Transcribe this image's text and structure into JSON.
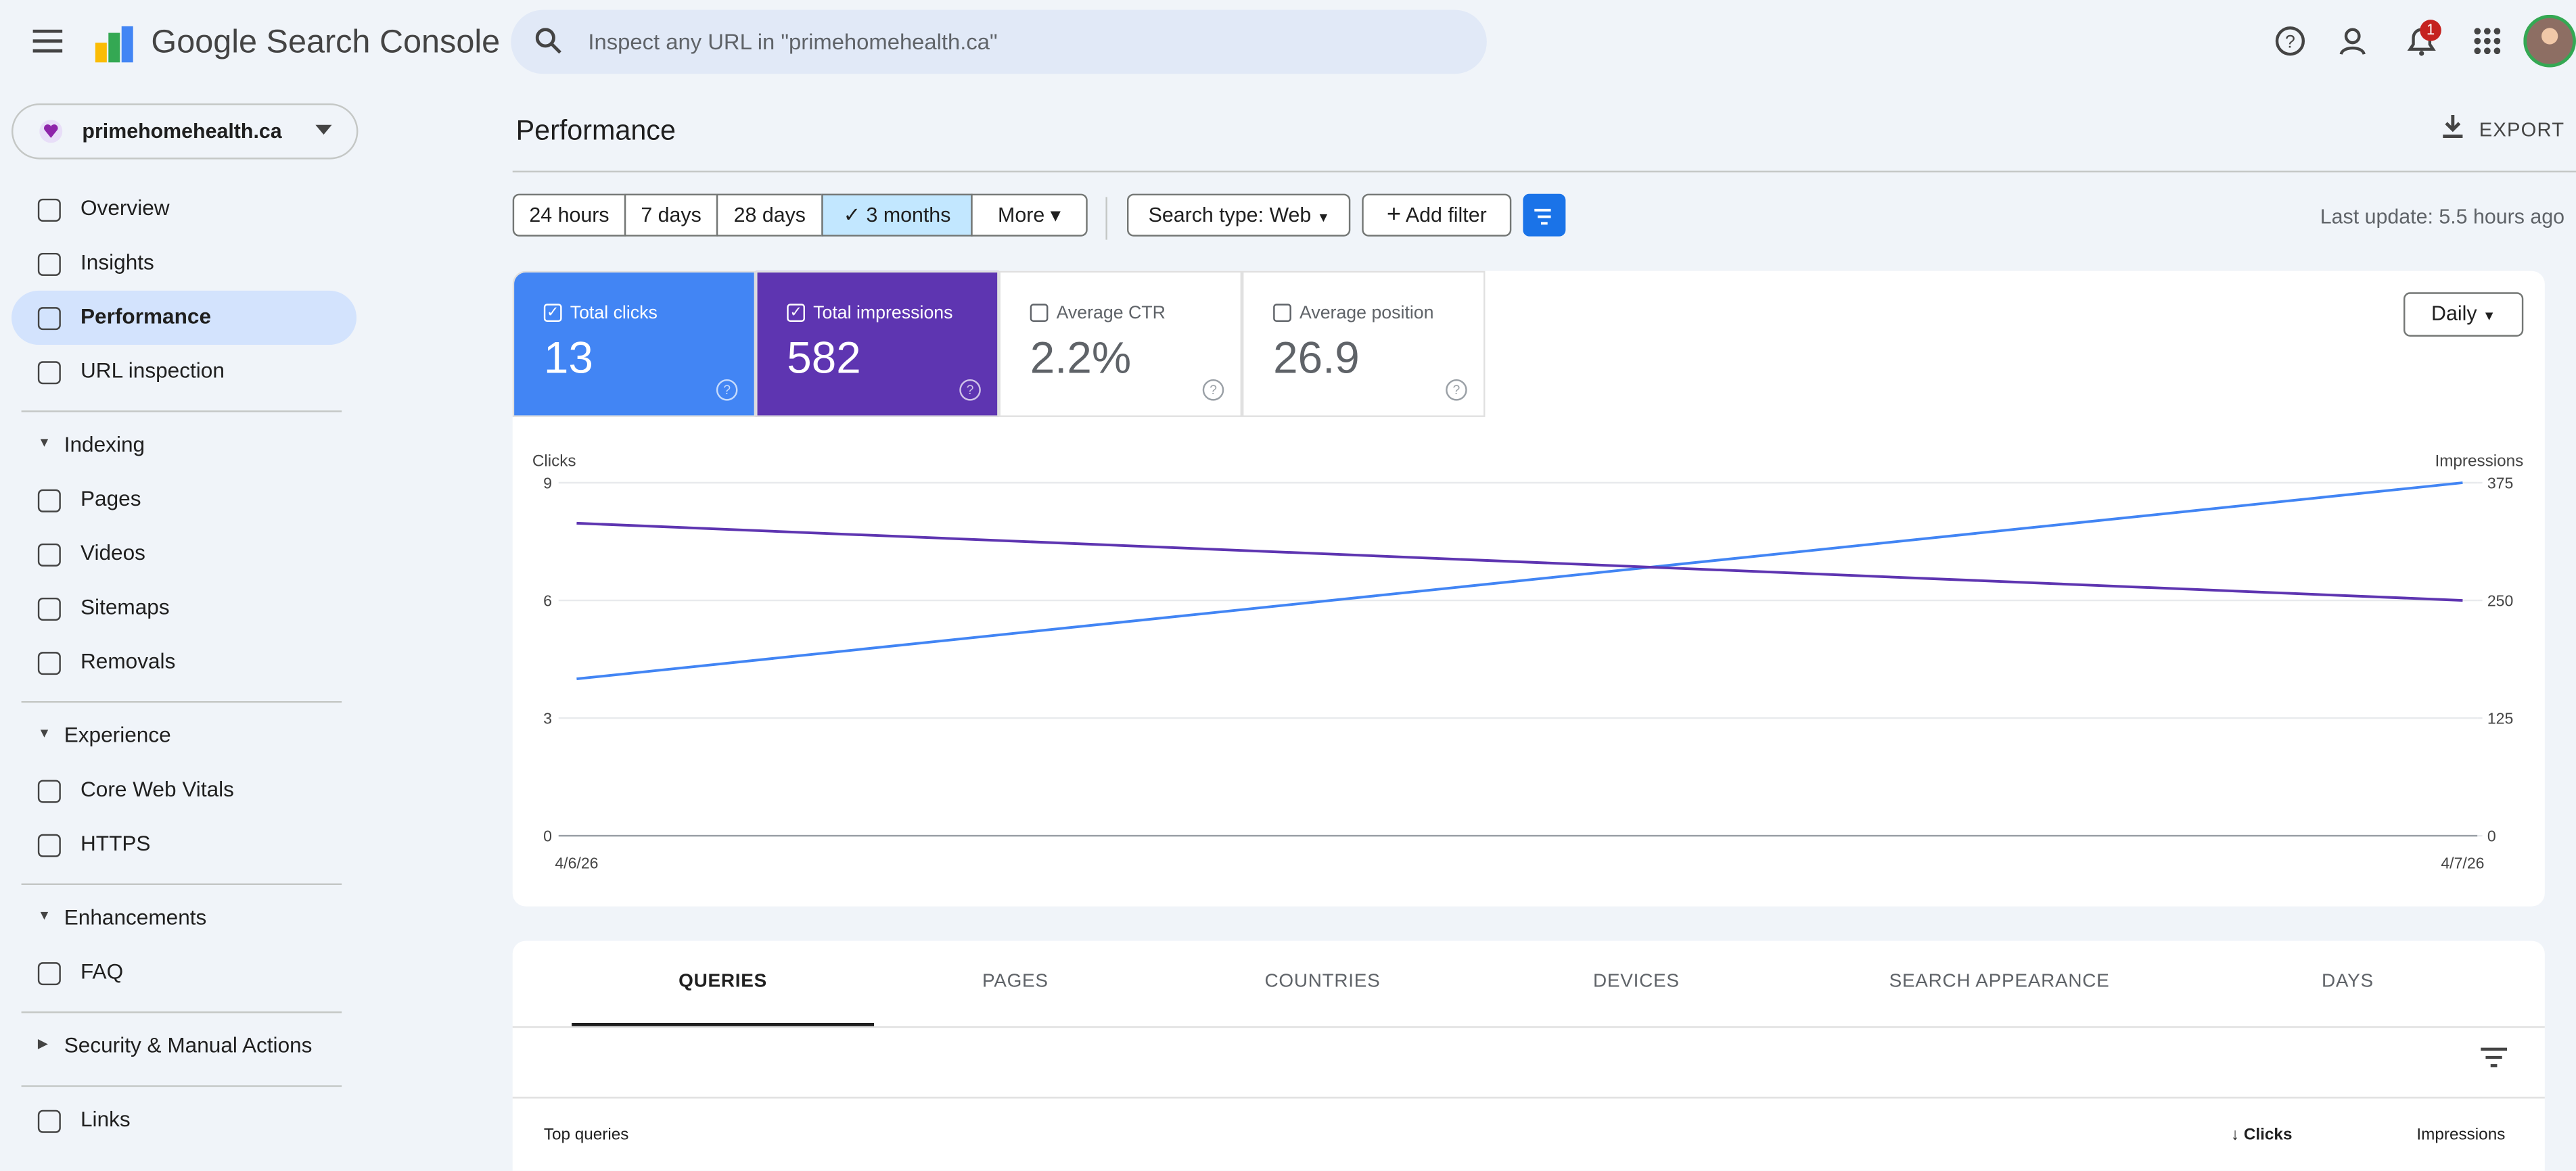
{
  "header": {
    "product": "Google Search Console",
    "search_placeholder": "Inspect any URL in \"primehomehealth.ca\"",
    "notification_count": "1"
  },
  "sidebar": {
    "property": "primehomehealth.ca",
    "active_index": 2,
    "top": [
      "Overview",
      "Insights",
      "Performance",
      "URL inspection"
    ],
    "sections": [
      {
        "title": "Indexing",
        "items": [
          "Pages",
          "Videos",
          "Sitemaps",
          "Removals"
        ]
      },
      {
        "title": "Experience",
        "items": [
          "Core Web Vitals",
          "HTTPS"
        ]
      },
      {
        "title": "Enhancements",
        "items": [
          "FAQ"
        ]
      },
      {
        "title": "Security & Manual Actions",
        "items": []
      }
    ],
    "bottom": [
      "Links"
    ]
  },
  "page": {
    "title": "Performance",
    "export": "EXPORT"
  },
  "toolbar": {
    "date_ranges": [
      "24 hours",
      "7 days",
      "28 days",
      "3 months",
      "More"
    ],
    "selected_range": 3,
    "search_type": "Search type: Web",
    "add_filter": "Add filter",
    "last_update": "Last update: 5.5 hours ago",
    "granularity": "Daily"
  },
  "metrics": [
    {
      "label": "Total clicks",
      "value": "13",
      "selected": true,
      "color": "#4285f4"
    },
    {
      "label": "Total impressions",
      "value": "582",
      "selected": true,
      "color": "#5e35b1"
    },
    {
      "label": "Average CTR",
      "value": "2.2%",
      "selected": false,
      "color": "#00897b"
    },
    {
      "label": "Average position",
      "value": "26.9",
      "selected": false,
      "color": "#e8710a"
    }
  ],
  "chart_data": {
    "type": "line",
    "ylabel": "Clicks",
    "y2label": "Impressions",
    "categories": [
      "4/6/26",
      "4/7/26"
    ],
    "series": [
      {
        "name": "Clicks",
        "color": "#4285f4",
        "values": [
          4,
          9
        ]
      },
      {
        "name": "Impressions",
        "color": "#5e35b1",
        "values": [
          332,
          250
        ],
        "axis": "y2"
      }
    ],
    "ylim": [
      0,
      9
    ],
    "yticks": [
      0,
      3,
      6,
      9
    ],
    "y2lim": [
      0,
      375
    ],
    "y2ticks": [
      0,
      125,
      250,
      375
    ],
    "grid": true
  },
  "tabs": {
    "items": [
      "QUERIES",
      "PAGES",
      "COUNTRIES",
      "DEVICES",
      "SEARCH APPEARANCE",
      "DAYS"
    ],
    "selected": 0
  },
  "table": {
    "title": "Top queries",
    "columns": [
      "Clicks",
      "Impressions"
    ]
  }
}
